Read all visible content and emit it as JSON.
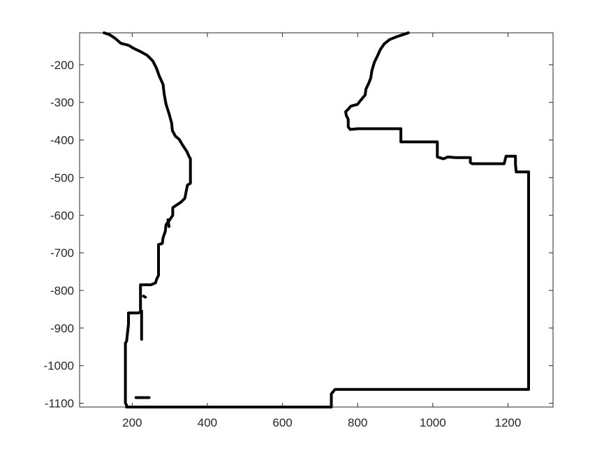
{
  "chart_data": {
    "type": "line",
    "title": "",
    "xlabel": "",
    "ylabel": "",
    "xlim": [
      60,
      1320
    ],
    "ylim": [
      -1110,
      -115
    ],
    "x_ticks": [
      200,
      400,
      600,
      800,
      1000,
      1200
    ],
    "y_ticks": [
      -200,
      -300,
      -400,
      -500,
      -600,
      -700,
      -800,
      -900,
      -1000,
      -1100
    ],
    "x_tick_labels": [
      "200",
      "400",
      "600",
      "800",
      "1000",
      "1200"
    ],
    "y_tick_labels": [
      "-200",
      "-300",
      "-400",
      "-500",
      "-600",
      "-700",
      "-800",
      "-900",
      "-1000",
      "-1100"
    ],
    "grid": false,
    "line_color": "#000000",
    "series": [
      {
        "points": [
          [
            125,
            -115
          ],
          [
            140,
            -120
          ],
          [
            155,
            -130
          ],
          [
            170,
            -143
          ],
          [
            190,
            -148
          ],
          [
            205,
            -157
          ],
          [
            222,
            -165
          ],
          [
            240,
            -175
          ],
          [
            255,
            -190
          ],
          [
            265,
            -210
          ],
          [
            272,
            -230
          ],
          [
            282,
            -252
          ],
          [
            285,
            -278
          ],
          [
            290,
            -305
          ],
          [
            298,
            -330
          ],
          [
            305,
            -355
          ],
          [
            307,
            -375
          ],
          [
            315,
            -390
          ],
          [
            325,
            -398
          ],
          [
            335,
            -415
          ],
          [
            345,
            -430
          ],
          [
            352,
            -445
          ],
          [
            355,
            -450
          ],
          [
            355,
            -515
          ],
          [
            347,
            -520
          ],
          [
            343,
            -540
          ],
          [
            340,
            -555
          ],
          [
            330,
            -565
          ],
          [
            315,
            -575
          ],
          [
            308,
            -580
          ],
          [
            308,
            -600
          ],
          [
            298,
            -615
          ],
          [
            290,
            -625
          ],
          [
            288,
            -643
          ],
          [
            282,
            -660
          ],
          [
            280,
            -675
          ],
          [
            270,
            -678
          ],
          [
            270,
            -760
          ],
          [
            265,
            -770
          ],
          [
            262,
            -780
          ],
          [
            250,
            -785
          ],
          [
            222,
            -785
          ],
          [
            222,
            -858
          ],
          [
            215,
            -860
          ],
          [
            190,
            -860
          ],
          [
            190,
            -890
          ],
          [
            185,
            -935
          ],
          [
            182,
            -940
          ],
          [
            182,
            -1100
          ],
          [
            185,
            -1105
          ],
          [
            185,
            -1110
          ],
          [
            730,
            -1110
          ],
          [
            730,
            -1075
          ],
          [
            740,
            -1063
          ],
          [
            750,
            -1063
          ],
          [
            1255,
            -1063
          ],
          [
            1255,
            -485
          ],
          [
            1250,
            -485
          ],
          [
            1222,
            -485
          ],
          [
            1220,
            -465
          ],
          [
            1220,
            -443
          ],
          [
            1205,
            -443
          ],
          [
            1195,
            -443
          ],
          [
            1190,
            -463
          ],
          [
            1105,
            -463
          ],
          [
            1100,
            -460
          ],
          [
            1100,
            -447
          ],
          [
            1060,
            -447
          ],
          [
            1040,
            -445
          ],
          [
            1028,
            -450
          ],
          [
            1022,
            -448
          ],
          [
            1012,
            -445
          ],
          [
            1012,
            -405
          ],
          [
            920,
            -405
          ],
          [
            915,
            -405
          ],
          [
            915,
            -370
          ],
          [
            855,
            -370
          ],
          [
            800,
            -370
          ],
          [
            780,
            -372
          ],
          [
            775,
            -365
          ],
          [
            775,
            -345
          ],
          [
            770,
            -335
          ],
          [
            768,
            -325
          ],
          [
            775,
            -318
          ],
          [
            782,
            -310
          ],
          [
            800,
            -305
          ],
          [
            805,
            -298
          ],
          [
            820,
            -280
          ],
          [
            822,
            -265
          ],
          [
            830,
            -248
          ],
          [
            835,
            -235
          ],
          [
            838,
            -215
          ],
          [
            845,
            -192
          ],
          [
            852,
            -178
          ],
          [
            860,
            -160
          ],
          [
            870,
            -145
          ],
          [
            885,
            -133
          ],
          [
            905,
            -125
          ],
          [
            920,
            -120
          ],
          [
            935,
            -115
          ]
        ]
      },
      {
        "points": [
          [
            210,
            -1085
          ],
          [
            245,
            -1085
          ]
        ]
      },
      {
        "points": [
          [
            225,
            -855
          ],
          [
            225,
            -930
          ]
        ]
      },
      {
        "points": [
          [
            230,
            -815
          ],
          [
            235,
            -818
          ]
        ]
      },
      {
        "points": [
          [
            295,
            -612
          ],
          [
            298,
            -630
          ]
        ]
      }
    ]
  }
}
